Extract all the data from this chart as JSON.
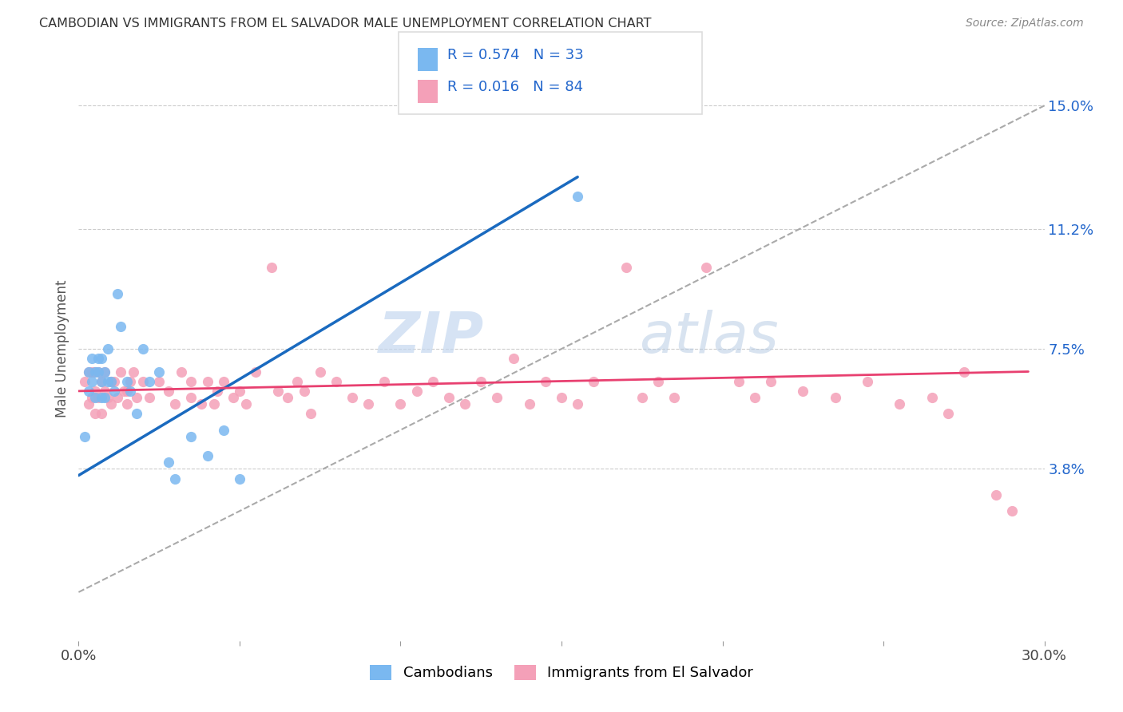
{
  "title": "CAMBODIAN VS IMMIGRANTS FROM EL SALVADOR MALE UNEMPLOYMENT CORRELATION CHART",
  "source": "Source: ZipAtlas.com",
  "ylabel": "Male Unemployment",
  "right_yticks": [
    "15.0%",
    "11.2%",
    "7.5%",
    "3.8%"
  ],
  "right_ytick_vals": [
    0.15,
    0.112,
    0.075,
    0.038
  ],
  "watermark_zip": "ZIP",
  "watermark_atlas": "atlas",
  "cambodian_color": "#7ab8f0",
  "salvador_color": "#f4a0b8",
  "blue_line_color": "#1a6abf",
  "pink_line_color": "#e84070",
  "dashed_line_color": "#aaaaaa",
  "background_color": "#ffffff",
  "xlim": [
    0.0,
    0.3
  ],
  "ylim": [
    -0.015,
    0.165
  ],
  "cambodian_x": [
    0.002,
    0.003,
    0.003,
    0.004,
    0.004,
    0.005,
    0.005,
    0.006,
    0.006,
    0.007,
    0.007,
    0.007,
    0.008,
    0.008,
    0.009,
    0.009,
    0.01,
    0.011,
    0.012,
    0.013,
    0.015,
    0.016,
    0.018,
    0.02,
    0.022,
    0.025,
    0.028,
    0.03,
    0.035,
    0.04,
    0.045,
    0.05,
    0.155
  ],
  "cambodian_y": [
    0.048,
    0.062,
    0.068,
    0.072,
    0.065,
    0.06,
    0.068,
    0.068,
    0.072,
    0.065,
    0.06,
    0.072,
    0.06,
    0.068,
    0.065,
    0.075,
    0.065,
    0.062,
    0.092,
    0.082,
    0.065,
    0.062,
    0.055,
    0.075,
    0.065,
    0.068,
    0.04,
    0.035,
    0.048,
    0.042,
    0.05,
    0.035,
    0.122
  ],
  "salvador_x": [
    0.002,
    0.003,
    0.003,
    0.004,
    0.004,
    0.005,
    0.005,
    0.005,
    0.006,
    0.006,
    0.007,
    0.007,
    0.008,
    0.008,
    0.009,
    0.01,
    0.01,
    0.011,
    0.012,
    0.013,
    0.014,
    0.015,
    0.015,
    0.016,
    0.017,
    0.018,
    0.02,
    0.022,
    0.025,
    0.028,
    0.03,
    0.032,
    0.035,
    0.035,
    0.038,
    0.04,
    0.042,
    0.043,
    0.045,
    0.048,
    0.05,
    0.052,
    0.055,
    0.06,
    0.062,
    0.065,
    0.068,
    0.07,
    0.072,
    0.075,
    0.08,
    0.085,
    0.09,
    0.095,
    0.1,
    0.105,
    0.11,
    0.115,
    0.12,
    0.125,
    0.13,
    0.135,
    0.14,
    0.145,
    0.15,
    0.155,
    0.16,
    0.17,
    0.175,
    0.18,
    0.185,
    0.195,
    0.205,
    0.21,
    0.215,
    0.225,
    0.235,
    0.245,
    0.255,
    0.265,
    0.27,
    0.275,
    0.285,
    0.29
  ],
  "salvador_y": [
    0.065,
    0.058,
    0.068,
    0.06,
    0.068,
    0.055,
    0.062,
    0.068,
    0.06,
    0.068,
    0.055,
    0.065,
    0.062,
    0.068,
    0.06,
    0.058,
    0.065,
    0.065,
    0.06,
    0.068,
    0.062,
    0.058,
    0.062,
    0.065,
    0.068,
    0.06,
    0.065,
    0.06,
    0.065,
    0.062,
    0.058,
    0.068,
    0.06,
    0.065,
    0.058,
    0.065,
    0.058,
    0.062,
    0.065,
    0.06,
    0.062,
    0.058,
    0.068,
    0.1,
    0.062,
    0.06,
    0.065,
    0.062,
    0.055,
    0.068,
    0.065,
    0.06,
    0.058,
    0.065,
    0.058,
    0.062,
    0.065,
    0.06,
    0.058,
    0.065,
    0.06,
    0.072,
    0.058,
    0.065,
    0.06,
    0.058,
    0.065,
    0.1,
    0.06,
    0.065,
    0.06,
    0.1,
    0.065,
    0.06,
    0.065,
    0.062,
    0.06,
    0.065,
    0.058,
    0.06,
    0.055,
    0.068,
    0.03,
    0.025
  ],
  "blue_line_x0": 0.0,
  "blue_line_y0": 0.036,
  "blue_line_x1": 0.155,
  "blue_line_y1": 0.128,
  "pink_line_x0": 0.0,
  "pink_line_y0": 0.062,
  "pink_line_x1": 0.295,
  "pink_line_y1": 0.068
}
